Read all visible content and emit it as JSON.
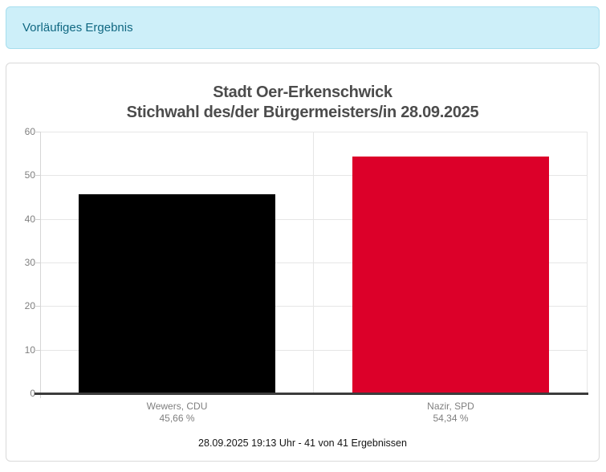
{
  "banner": {
    "label": "Vorläufiges Ergebnis"
  },
  "chart": {
    "title_line1": "Stadt Oer-Erkenschwick",
    "title_line2": "Stichwahl des/der Bürgermeisters/in 28.09.2025",
    "footer": "28.09.2025 19:13 Uhr - 41 von 41 Ergebnissen"
  },
  "chart_data": {
    "type": "bar",
    "title": "Stadt Oer-Erkenschwick Stichwahl des/der Bürgermeisters/in 28.09.2025",
    "categories": [
      "Wewers, CDU",
      "Nazir, SPD"
    ],
    "values": [
      45.66,
      54.34
    ],
    "value_labels": [
      "45,66 %",
      "54,34 %"
    ],
    "bar_colors": [
      "#000000",
      "#dc0029"
    ],
    "ylim": [
      0,
      60
    ],
    "ytick_interval": 10,
    "yticks": [
      0,
      10,
      20,
      30,
      40,
      50,
      60
    ],
    "grid": true,
    "legend": false,
    "xlabel": "",
    "ylabel": "",
    "annotation": "28.09.2025 19:13 Uhr - 41 von 41 Ergebnissen"
  },
  "colors": {
    "banner_bg": "#cdeff9",
    "banner_border": "#a7deee",
    "banner_text": "#106882",
    "card_border": "#d9d9d9",
    "title_text": "#4c4c4c",
    "axis_label_text": "#7f7f7f",
    "gridline": "#e6e6e6",
    "axis_line": "#3c3c3c",
    "bar_cdu": "#000000",
    "bar_spd": "#dc0029",
    "footer_text": "#141414"
  }
}
